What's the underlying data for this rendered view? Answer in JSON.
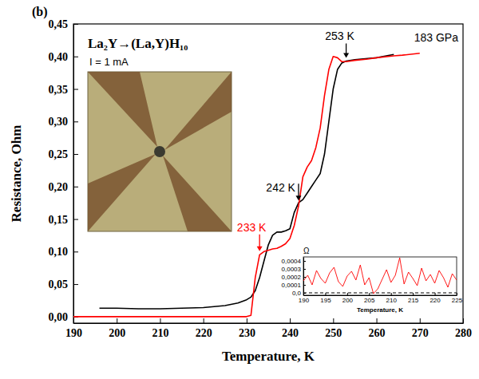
{
  "chart_data": [
    {
      "type": "line",
      "title": "La₂Y→(La,Y)H₁₀",
      "panel_label": "(b)",
      "current": "I = 1 mA",
      "pressure": "183 GPa",
      "x_label": "Temperature, K",
      "y_label": "Resistance, Ohm",
      "x": [
        190,
        192,
        194,
        196,
        198,
        200,
        205,
        210,
        215,
        220,
        225,
        228,
        230,
        231,
        232,
        233,
        234,
        235,
        236,
        237,
        238,
        239,
        240,
        241,
        242,
        243,
        244,
        245,
        246,
        247,
        248,
        249,
        250,
        251,
        252,
        253,
        255,
        258,
        260,
        264,
        266,
        270
      ],
      "series": [
        {
          "color": "#000000",
          "values": [
            null,
            null,
            null,
            0.013,
            0.013,
            0.013,
            0.012,
            0.012,
            0.013,
            0.014,
            0.017,
            0.021,
            0.026,
            0.03,
            0.04,
            0.06,
            0.085,
            0.11,
            0.125,
            0.13,
            0.13,
            0.132,
            0.135,
            0.16,
            0.175,
            0.18,
            0.19,
            0.2,
            0.21,
            0.22,
            0.25,
            0.3,
            0.35,
            0.38,
            0.39,
            0.393,
            0.395,
            0.397,
            0.398,
            0.403,
            null,
            null
          ]
        },
        {
          "color": "#ff0000",
          "values": [
            0.0,
            0.0,
            0.0,
            0.0,
            0.0,
            0.0,
            0.0,
            0.0,
            0.0,
            0.0,
            0.0,
            0.0,
            0.0,
            0.002,
            0.06,
            0.095,
            0.1,
            0.102,
            0.104,
            0.105,
            0.108,
            0.112,
            0.12,
            0.14,
            0.17,
            0.215,
            0.23,
            0.24,
            0.26,
            0.29,
            0.34,
            0.38,
            0.4,
            0.398,
            0.392,
            0.392,
            0.394,
            0.396,
            0.398,
            0.401,
            0.402,
            0.405
          ]
        }
      ],
      "annotations": [
        {
          "text": "253 K",
          "x": 253,
          "y": 0.393
        },
        {
          "text": "242 K",
          "x": 242,
          "y": 0.175
        },
        {
          "text": "233 K",
          "x": 233,
          "y": 0.097,
          "color": "#ff0000"
        }
      ],
      "xlim": [
        190,
        280
      ],
      "xticks": [
        190,
        200,
        210,
        220,
        230,
        240,
        250,
        260,
        270,
        280
      ],
      "ylim": [
        -0.01,
        0.45
      ],
      "yticks": [
        {
          "value": 0,
          "label": "0,00"
        },
        {
          "value": 0.05,
          "label": "0,05"
        },
        {
          "value": 0.1,
          "label": "0,10"
        },
        {
          "value": 0.15,
          "label": "0,15"
        },
        {
          "value": 0.2,
          "label": "0,20"
        },
        {
          "value": 0.25,
          "label": "0,25"
        },
        {
          "value": 0.3,
          "label": "0,30"
        },
        {
          "value": 0.35,
          "label": "0,35"
        },
        {
          "value": 0.4,
          "label": "0,40"
        },
        {
          "value": 0.45,
          "label": "0,45"
        }
      ],
      "grid": false
    },
    {
      "type": "line",
      "x_label": "Temperature, K",
      "y_label": "Ω",
      "x": [
        190,
        191,
        192,
        193,
        194,
        195,
        196,
        197,
        198,
        199,
        200,
        201,
        202,
        203,
        204,
        205,
        206,
        207,
        208,
        209,
        210,
        211,
        212,
        213,
        214,
        215,
        216,
        217,
        218,
        219,
        220,
        221,
        222,
        223,
        224,
        225
      ],
      "series": [
        {
          "color": "#ff0000",
          "values": [
            0.00015,
            0.00022,
            0.0001,
            0.00028,
            0.00018,
            0.00012,
            0.00025,
            0.00032,
            0.00014,
            8e-05,
            0.00021,
            0.00027,
            0.00016,
            0.00035,
            0.0001,
            0.00019,
            -1e-05,
            5e-05,
            0.00017,
            0.00029,
            0.00013,
            0.00022,
            0.00044,
            0.00011,
            0.00026,
            0.00018,
            9e-05,
            0.00031,
            0.00015,
            0.00023,
            0.00012,
            0.00028,
            0.00019,
            7e-05,
            0.00024,
            0.00016
          ]
        }
      ],
      "xlim": [
        190,
        225
      ],
      "xticks": [
        190,
        195,
        200,
        205,
        210,
        215,
        220,
        225
      ],
      "ylim": [
        -3e-05,
        0.00045
      ],
      "yticks": [
        {
          "value": 0,
          "label": "0,0"
        },
        {
          "value": 0.0001,
          "label": "0,0001"
        },
        {
          "value": 0.0002,
          "label": "0,0002"
        },
        {
          "value": 0.0003,
          "label": "0,0003"
        },
        {
          "value": 0.0004,
          "label": "0,0004"
        }
      ],
      "grid": false
    }
  ]
}
